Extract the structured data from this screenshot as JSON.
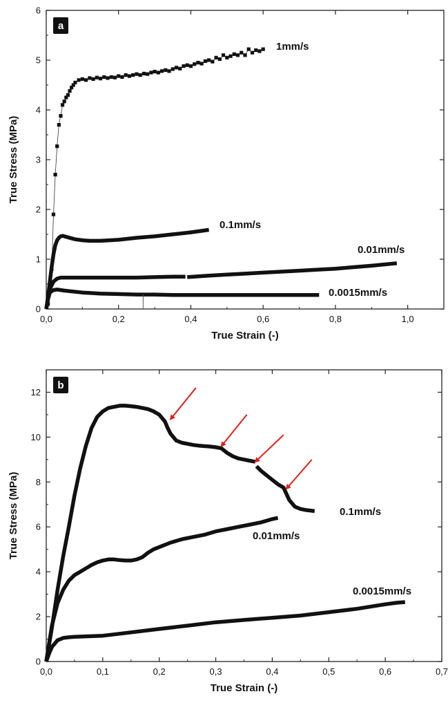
{
  "chart_data": [
    {
      "type": "line",
      "panel_label": "a",
      "xlabel": "True Strain (-)",
      "ylabel": "True Stress (MPa)",
      "xlim": [
        0,
        1.1
      ],
      "ylim": [
        0,
        6
      ],
      "xticks": [
        "0,0",
        "0,2",
        "0,4",
        "0,6",
        "0,8",
        "1,0"
      ],
      "xtick_values": [
        0,
        0.2,
        0.4,
        0.6,
        0.8,
        1.0
      ],
      "yticks": [
        "0",
        "1",
        "2",
        "3",
        "4",
        "5",
        "6"
      ],
      "ytick_values": [
        0,
        1,
        2,
        3,
        4,
        5,
        6
      ],
      "grid": false,
      "series": [
        {
          "name": "1mm/s",
          "style": "markers",
          "x": [
            0.005,
            0.01,
            0.015,
            0.02,
            0.025,
            0.03,
            0.035,
            0.04,
            0.045,
            0.05,
            0.055,
            0.06,
            0.065,
            0.07,
            0.075,
            0.08,
            0.09,
            0.1,
            0.11,
            0.12,
            0.13,
            0.14,
            0.15,
            0.16,
            0.17,
            0.18,
            0.19,
            0.2,
            0.21,
            0.22,
            0.23,
            0.24,
            0.25,
            0.26,
            0.27,
            0.28,
            0.29,
            0.3,
            0.31,
            0.32,
            0.33,
            0.34,
            0.35,
            0.36,
            0.37,
            0.38,
            0.39,
            0.4,
            0.41,
            0.42,
            0.43,
            0.44,
            0.45,
            0.46,
            0.47,
            0.48,
            0.49,
            0.5,
            0.51,
            0.52,
            0.53,
            0.54,
            0.55,
            0.56,
            0.57,
            0.58,
            0.59,
            0.6
          ],
          "y": [
            0.1,
            0.35,
            0.8,
            1.9,
            2.7,
            3.27,
            3.7,
            3.88,
            4.1,
            4.17,
            4.25,
            4.3,
            4.38,
            4.45,
            4.5,
            4.55,
            4.6,
            4.62,
            4.6,
            4.64,
            4.62,
            4.65,
            4.63,
            4.66,
            4.64,
            4.66,
            4.65,
            4.68,
            4.66,
            4.7,
            4.68,
            4.7,
            4.72,
            4.7,
            4.73,
            4.72,
            4.75,
            4.77,
            4.75,
            4.78,
            4.8,
            4.78,
            4.82,
            4.85,
            4.83,
            4.88,
            4.9,
            4.88,
            4.92,
            4.95,
            4.93,
            4.98,
            5.0,
            4.97,
            5.05,
            5.02,
            5.1,
            5.05,
            5.08,
            5.12,
            5.1,
            5.15,
            5.1,
            5.22,
            5.15,
            5.2,
            5.18,
            5.22
          ]
        },
        {
          "name": "0.1mm/s",
          "style": "thick",
          "x": [
            0.0,
            0.005,
            0.01,
            0.015,
            0.02,
            0.025,
            0.03,
            0.035,
            0.04,
            0.045,
            0.05,
            0.06,
            0.07,
            0.08,
            0.1,
            0.12,
            0.15,
            0.2,
            0.25,
            0.3,
            0.35,
            0.4,
            0.45
          ],
          "y": [
            0.0,
            0.25,
            0.55,
            0.85,
            1.1,
            1.28,
            1.38,
            1.43,
            1.46,
            1.47,
            1.46,
            1.44,
            1.42,
            1.4,
            1.38,
            1.37,
            1.37,
            1.39,
            1.43,
            1.46,
            1.5,
            1.54,
            1.59
          ]
        },
        {
          "name": "0.01mm/s",
          "style": "thick",
          "x": [
            0.0,
            0.005,
            0.01,
            0.02,
            0.03,
            0.04,
            0.05,
            0.07,
            0.1,
            0.15,
            0.2,
            0.25,
            0.3,
            0.35,
            0.385,
            null,
            0.39,
            0.45,
            0.5,
            0.55,
            0.6,
            0.65,
            0.7,
            0.75,
            0.8,
            0.85,
            0.9,
            0.97
          ],
          "y": [
            0.0,
            0.2,
            0.4,
            0.55,
            0.61,
            0.63,
            0.63,
            0.63,
            0.63,
            0.63,
            0.63,
            0.63,
            0.64,
            0.65,
            0.65,
            null,
            0.64,
            0.67,
            0.69,
            0.71,
            0.73,
            0.75,
            0.77,
            0.79,
            0.81,
            0.84,
            0.87,
            0.92
          ]
        },
        {
          "name": "0.0015mm/s",
          "style": "thick",
          "x": [
            0.0,
            0.005,
            0.01,
            0.02,
            0.03,
            0.05,
            0.1,
            0.15,
            0.2,
            0.25,
            0.3,
            0.35,
            0.4,
            0.45,
            0.5,
            0.55,
            0.6,
            0.65,
            0.7,
            0.755
          ],
          "y": [
            0.0,
            0.2,
            0.33,
            0.38,
            0.39,
            0.37,
            0.33,
            0.31,
            0.3,
            0.29,
            0.29,
            0.28,
            0.28,
            0.28,
            0.28,
            0.28,
            0.28,
            0.28,
            0.28,
            0.28
          ]
        }
      ]
    },
    {
      "type": "line",
      "panel_label": "b",
      "xlabel": "True Strain (-)",
      "ylabel": "True Stress (MPa)",
      "xlim": [
        0,
        0.7
      ],
      "ylim": [
        0,
        13
      ],
      "xticks": [
        "0,0",
        "0,1",
        "0,2",
        "0,3",
        "0,4",
        "0,5",
        "0,6",
        "0,7"
      ],
      "xtick_values": [
        0,
        0.1,
        0.2,
        0.3,
        0.4,
        0.5,
        0.6,
        0.7
      ],
      "yticks": [
        "0",
        "2",
        "4",
        "6",
        "8",
        "10",
        "12"
      ],
      "ytick_values": [
        0,
        2,
        4,
        6,
        8,
        10,
        12
      ],
      "grid": false,
      "series": [
        {
          "name": "0.1mm/s",
          "style": "thick",
          "x": [
            0.0,
            0.01,
            0.02,
            0.03,
            0.04,
            0.05,
            0.06,
            0.07,
            0.08,
            0.09,
            0.1,
            0.11,
            0.12,
            0.13,
            0.14,
            0.15,
            0.16,
            0.17,
            0.18,
            0.19,
            0.2,
            0.21,
            0.215,
            0.22,
            0.225,
            0.23,
            0.24,
            0.25,
            0.26,
            0.27,
            0.28,
            0.29,
            0.3,
            0.31,
            0.32,
            0.33,
            0.34,
            0.35,
            0.36,
            0.37,
            null,
            0.372,
            0.38,
            0.39,
            0.4,
            0.41,
            0.42,
            0.43,
            0.44,
            0.45,
            0.46,
            0.47,
            0.475
          ],
          "y": [
            0.0,
            1.5,
            3.2,
            4.7,
            6.0,
            7.4,
            8.6,
            9.6,
            10.4,
            10.9,
            11.15,
            11.3,
            11.35,
            11.4,
            11.4,
            11.38,
            11.35,
            11.3,
            11.25,
            11.15,
            11.0,
            10.7,
            10.4,
            10.15,
            10.0,
            9.85,
            9.75,
            9.7,
            9.65,
            9.62,
            9.6,
            9.58,
            9.55,
            9.5,
            9.3,
            9.15,
            9.05,
            9.0,
            8.95,
            8.9,
            null,
            8.7,
            8.5,
            8.3,
            8.1,
            7.9,
            7.75,
            7.2,
            6.9,
            6.8,
            6.75,
            6.72,
            6.7
          ]
        },
        {
          "name": "0.01mm/s",
          "style": "thick",
          "x": [
            0.0,
            0.005,
            0.01,
            0.02,
            0.03,
            0.04,
            0.05,
            0.06,
            0.07,
            0.08,
            0.09,
            0.1,
            0.11,
            0.12,
            0.13,
            0.14,
            0.15,
            0.16,
            0.17,
            0.18,
            0.19,
            0.2,
            0.22,
            0.24,
            0.26,
            0.28,
            0.3,
            0.32,
            0.34,
            0.36,
            0.38,
            0.4,
            0.41
          ],
          "y": [
            0.0,
            0.8,
            1.6,
            2.6,
            3.2,
            3.6,
            3.85,
            4.0,
            4.15,
            4.3,
            4.42,
            4.5,
            4.55,
            4.55,
            4.52,
            4.5,
            4.5,
            4.55,
            4.65,
            4.85,
            5.0,
            5.1,
            5.3,
            5.45,
            5.55,
            5.65,
            5.8,
            5.9,
            6.0,
            6.1,
            6.2,
            6.35,
            6.4
          ]
        },
        {
          "name": "0.0015mm/s",
          "style": "thick",
          "x": [
            0.0,
            0.005,
            0.01,
            0.02,
            0.03,
            0.04,
            0.05,
            0.07,
            0.1,
            0.15,
            0.2,
            0.25,
            0.3,
            0.35,
            0.4,
            0.45,
            0.5,
            0.55,
            0.6,
            0.62,
            0.635
          ],
          "y": [
            0.0,
            0.35,
            0.65,
            0.95,
            1.05,
            1.08,
            1.1,
            1.12,
            1.15,
            1.3,
            1.45,
            1.6,
            1.75,
            1.85,
            1.95,
            2.05,
            2.2,
            2.35,
            2.55,
            2.62,
            2.65
          ]
        }
      ],
      "annotations": [
        {
          "type": "arrow",
          "color": "#e0201a",
          "tip": [
            0.22,
            10.8
          ],
          "tail": [
            0.265,
            12.2
          ]
        },
        {
          "type": "arrow",
          "color": "#e0201a",
          "tip": [
            0.31,
            9.6
          ],
          "tail": [
            0.355,
            11.0
          ]
        },
        {
          "type": "arrow",
          "color": "#e0201a",
          "tip": [
            0.37,
            8.9
          ],
          "tail": [
            0.42,
            10.1
          ]
        },
        {
          "type": "arrow",
          "color": "#e0201a",
          "tip": [
            0.425,
            7.7
          ],
          "tail": [
            0.47,
            9.0
          ]
        }
      ]
    }
  ]
}
